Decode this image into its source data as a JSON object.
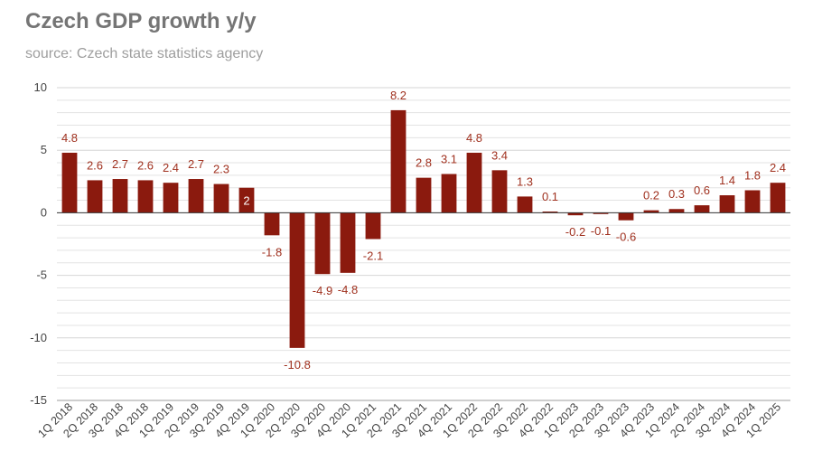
{
  "chart_data": {
    "type": "bar",
    "title": "Czech GDP growth y/y",
    "subtitle": "source: Czech state statistics agency",
    "xlabel": "",
    "ylabel": "",
    "ylim": [
      -15,
      10
    ],
    "yticks": [
      10,
      5,
      0,
      -5,
      -10,
      -15
    ],
    "grid": true,
    "categories": [
      "1Q 2018",
      "2Q 2018",
      "3Q 2018",
      "4Q 2018",
      "1Q 2019",
      "2Q 2019",
      "3Q 2019",
      "4Q 2019",
      "1Q 2020",
      "2Q 2020",
      "3Q 2020",
      "4Q 2020",
      "1Q 2021",
      "2Q 2021",
      "3Q 2021",
      "4Q 2021",
      "1Q 2022",
      "2Q 2022",
      "3Q 2022",
      "4Q 2022",
      "1Q 2023",
      "2Q 2023",
      "3Q 2023",
      "4Q 2023",
      "1Q 2024",
      "2Q 2024",
      "3Q 2024",
      "4Q 2024",
      "1Q 2025"
    ],
    "values": [
      4.8,
      2.6,
      2.7,
      2.6,
      2.4,
      2.7,
      2.3,
      2,
      -1.8,
      -10.8,
      -4.9,
      -4.8,
      -2.1,
      8.2,
      2.8,
      3.1,
      4.8,
      3.4,
      1.3,
      0.1,
      -0.2,
      -0.1,
      -0.6,
      0.2,
      0.3,
      0.6,
      1.4,
      1.8,
      2.4
    ],
    "colors": {
      "bar": "#8b1a0e",
      "label": "#a0311f",
      "label_inside": "#ffffff",
      "grid": "#e3e3e3",
      "axis": "#333333"
    }
  }
}
